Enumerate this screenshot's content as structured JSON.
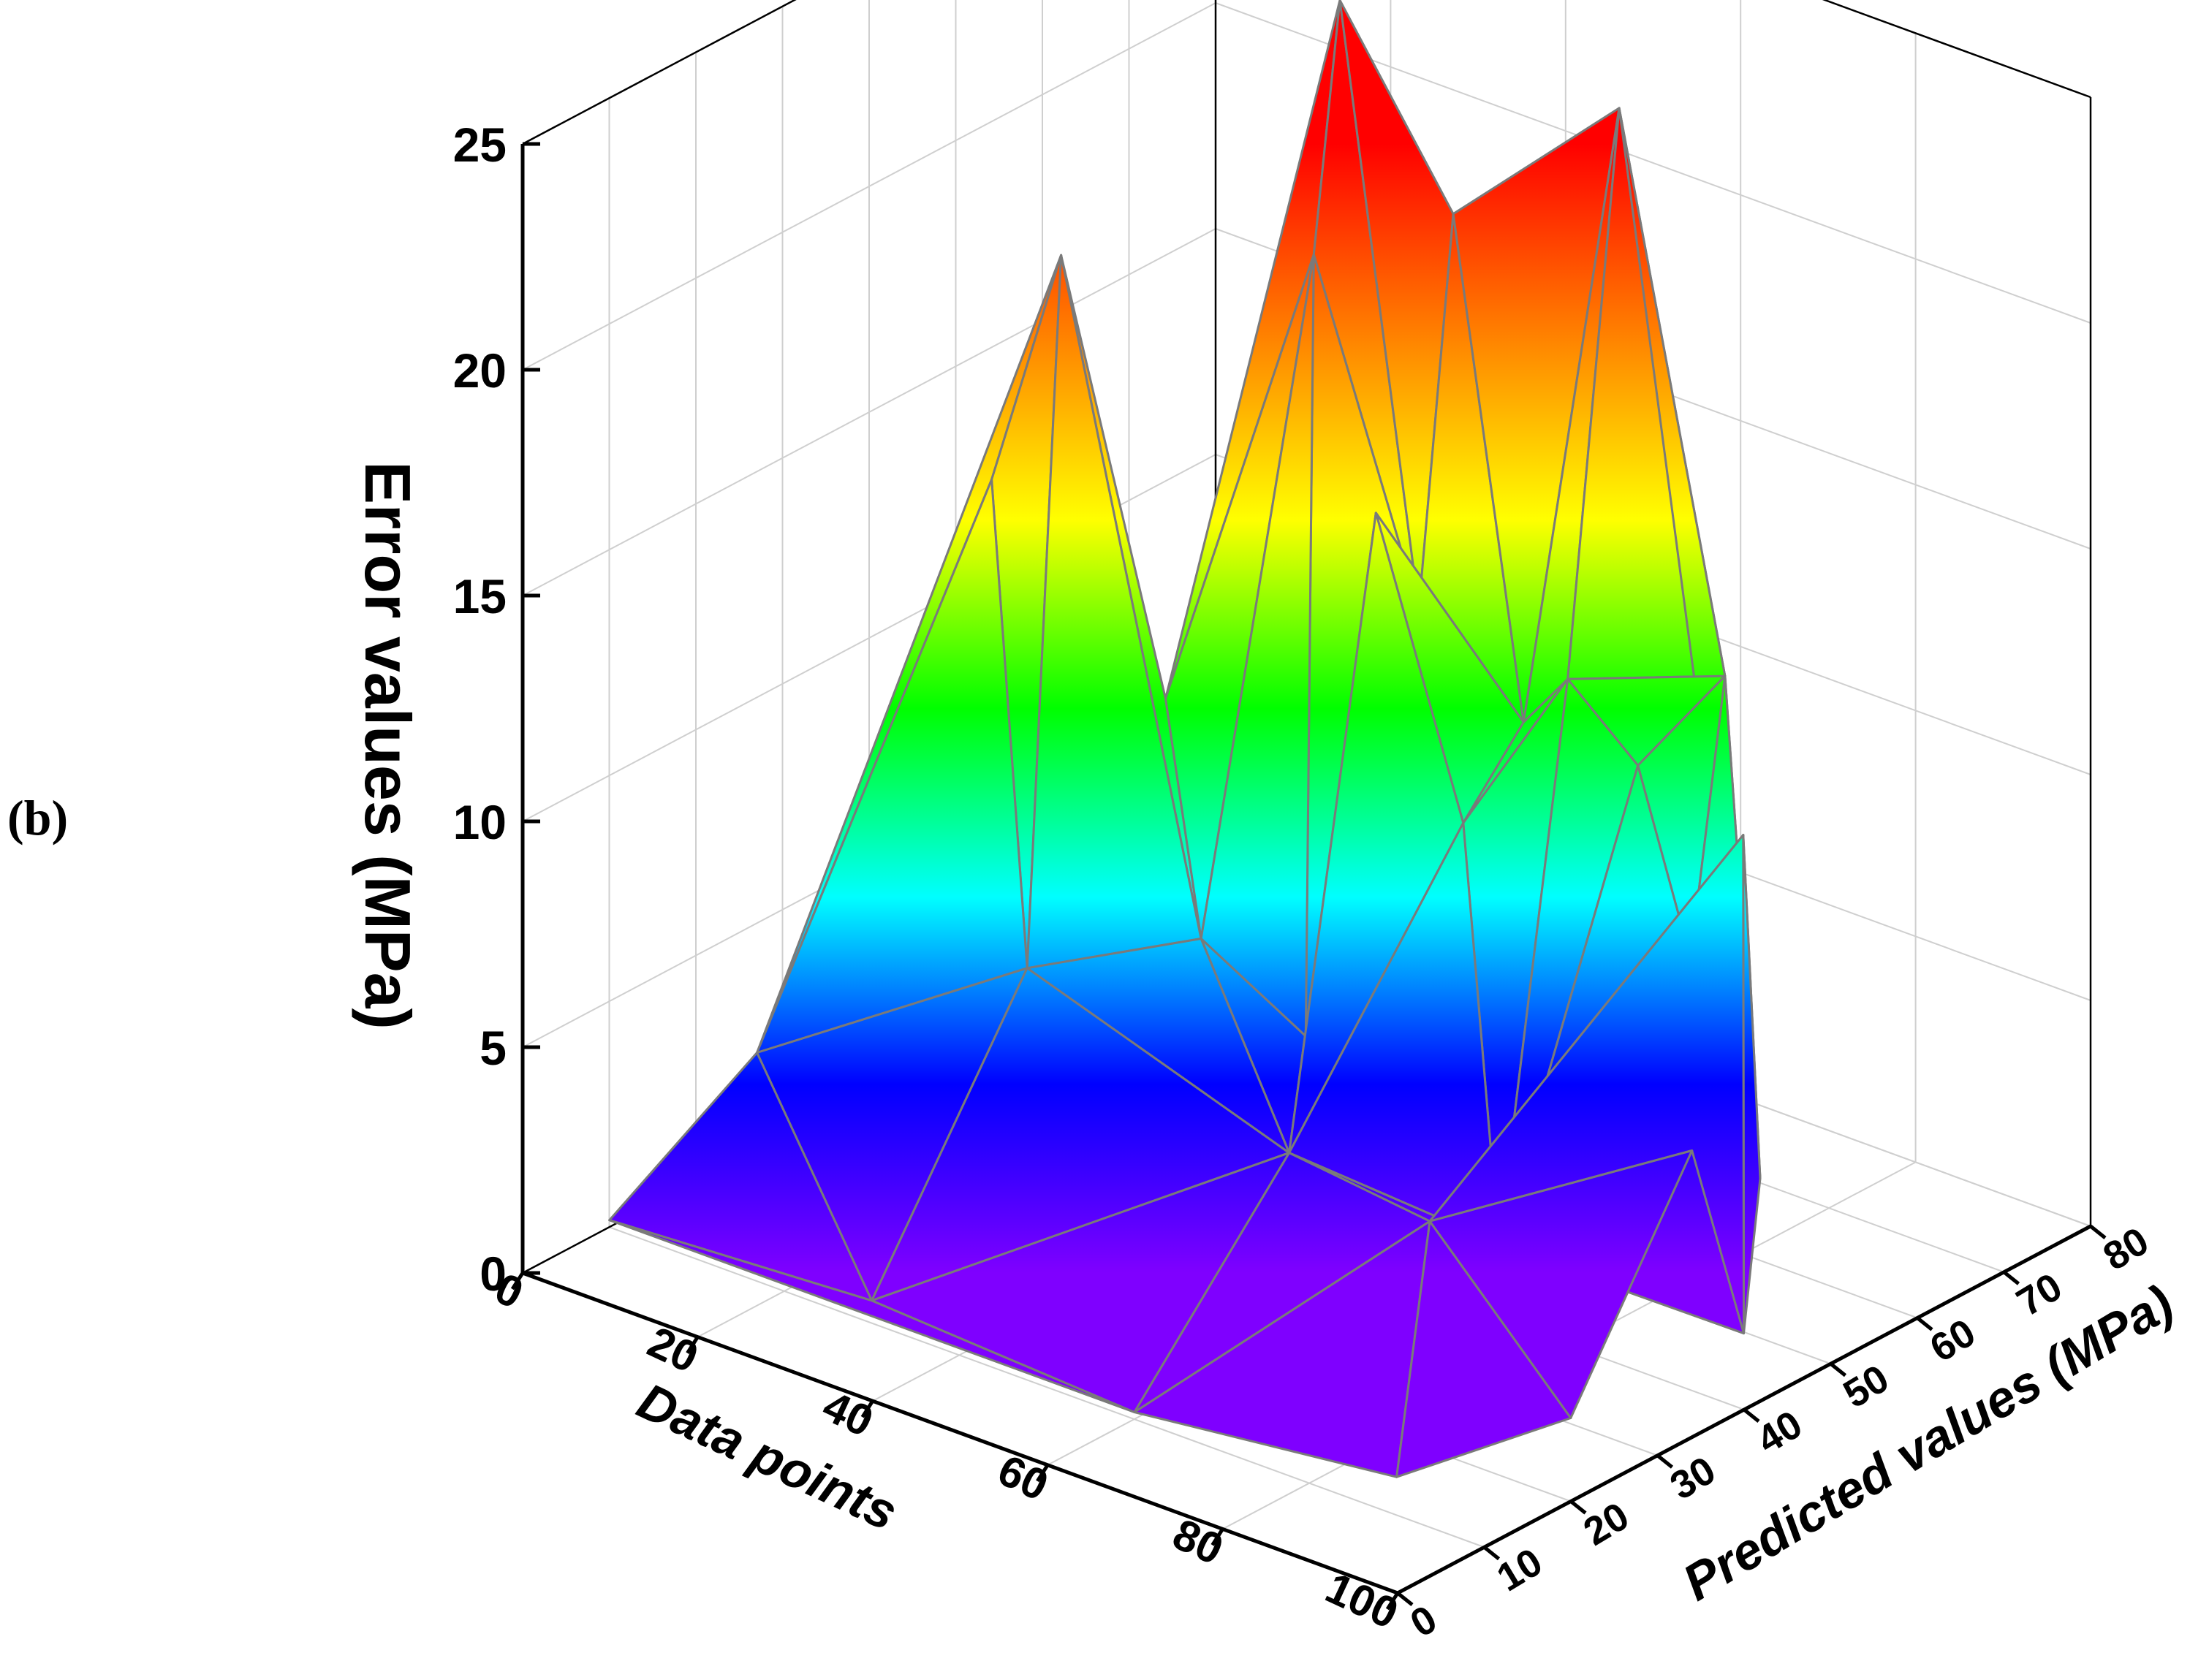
{
  "panel_label": "(b)",
  "chart_data": {
    "type": "surface3d",
    "title": "",
    "xlabel": "Data points",
    "ylabel": "Predicted values (MPa)",
    "zlabel": "Error values (MPa)",
    "xlim": [
      0,
      100
    ],
    "ylim": [
      0,
      80
    ],
    "zlim": [
      0,
      25
    ],
    "x_ticks": [
      "0",
      "20",
      "40",
      "60",
      "80",
      "100"
    ],
    "y_ticks": [
      "0",
      "10",
      "20",
      "30",
      "40",
      "50",
      "60",
      "70",
      "80"
    ],
    "z_ticks": [
      "0",
      "5",
      "10",
      "15",
      "20",
      "25"
    ],
    "grid": true,
    "colormap": [
      "#7f00ff",
      "#0000ff",
      "#00ffff",
      "#00ff00",
      "#ffff00",
      "#ff7f00",
      "#ff0000"
    ],
    "points": [
      {
        "x": 2,
        "y": 8,
        "z": 0.5
      },
      {
        "x": 30,
        "y": 10,
        "z": 0.5
      },
      {
        "x": 62,
        "y": 8,
        "z": 0.5
      },
      {
        "x": 88,
        "y": 12,
        "z": 0.5
      },
      {
        "x": 98,
        "y": 22,
        "z": 1.5
      },
      {
        "x": 5,
        "y": 22,
        "z": 3
      },
      {
        "x": 14,
        "y": 40,
        "z": 14.5
      },
      {
        "x": 16,
        "y": 46,
        "z": 19
      },
      {
        "x": 24,
        "y": 34,
        "z": 5
      },
      {
        "x": 22,
        "y": 52,
        "z": 9
      },
      {
        "x": 32,
        "y": 46,
        "z": 5
      },
      {
        "x": 33,
        "y": 58,
        "z": 19
      },
      {
        "x": 34,
        "y": 60,
        "z": 24.5
      },
      {
        "x": 40,
        "y": 50,
        "z": 3
      },
      {
        "x": 43,
        "y": 64,
        "z": 20
      },
      {
        "x": 45,
        "y": 58,
        "z": 12
      },
      {
        "x": 50,
        "y": 48,
        "z": 15.5
      },
      {
        "x": 48,
        "y": 40,
        "z": 2
      },
      {
        "x": 58,
        "y": 50,
        "z": 9
      },
      {
        "x": 55,
        "y": 60,
        "z": 10
      },
      {
        "x": 58,
        "y": 68,
        "z": 23
      },
      {
        "x": 64,
        "y": 56,
        "z": 12
      },
      {
        "x": 72,
        "y": 32,
        "z": 3
      },
      {
        "x": 68,
        "y": 44,
        "z": 1
      },
      {
        "x": 74,
        "y": 54,
        "z": 11
      },
      {
        "x": 80,
        "y": 58,
        "z": 13
      },
      {
        "x": 82,
        "y": 52,
        "z": 7.5
      },
      {
        "x": 86,
        "y": 56,
        "z": 2.5
      },
      {
        "x": 90,
        "y": 50,
        "z": 11
      },
      {
        "x": 96,
        "y": 44,
        "z": 1
      },
      {
        "x": 98,
        "y": 36,
        "z": 6
      }
    ]
  }
}
